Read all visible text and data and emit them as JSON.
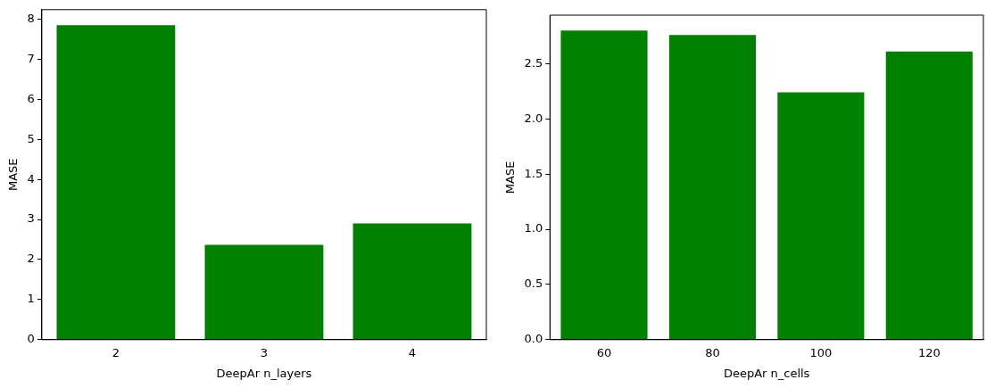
{
  "chart_data": [
    {
      "type": "bar",
      "xlabel": "DeepAr n_layers",
      "ylabel": "MASE",
      "categories": [
        "2",
        "3",
        "4"
      ],
      "values": [
        7.85,
        2.37,
        2.9
      ],
      "color": "#008000",
      "ylim": [
        0,
        8.24
      ],
      "yticks": [
        0,
        1,
        2,
        3,
        4,
        5,
        6,
        7,
        8
      ],
      "grid": false,
      "legend": false
    },
    {
      "type": "bar",
      "xlabel": "DeepAr n_cells",
      "ylabel": "MASE",
      "categories": [
        "60",
        "80",
        "100",
        "120"
      ],
      "values": [
        2.8,
        2.76,
        2.24,
        2.61
      ],
      "color": "#008000",
      "ylim": [
        0,
        2.94
      ],
      "yticks": [
        {
          "value": 0,
          "label": "0.0"
        },
        {
          "value": 0.5,
          "label": "0.5"
        },
        {
          "value": 1,
          "label": "1.0"
        },
        {
          "value": 1.5,
          "label": "1.5"
        },
        {
          "value": 2,
          "label": "2.0"
        },
        {
          "value": 2.5,
          "label": "2.5"
        }
      ],
      "grid": false,
      "legend": false
    }
  ]
}
